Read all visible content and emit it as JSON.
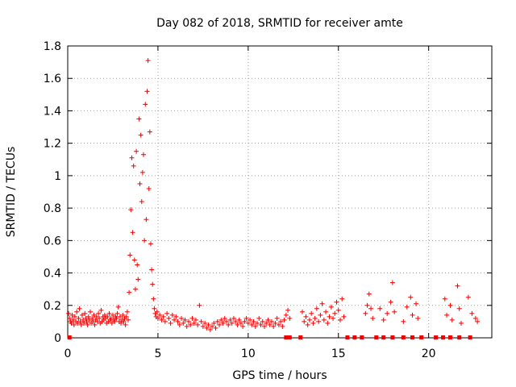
{
  "chart_data": {
    "type": "scatter",
    "title": "Day 082 of 2018, SRMTID for receiver amte",
    "xlabel": "GPS time / hours",
    "ylabel": "SRMTID / TECUs",
    "xlim": [
      0,
      23.5
    ],
    "ylim": [
      0,
      1.8
    ],
    "xticks": [
      0,
      5,
      10,
      15,
      20
    ],
    "yticks": [
      0,
      0.2,
      0.4,
      0.6,
      0.8,
      1,
      1.2,
      1.4,
      1.6,
      1.8
    ],
    "ytick_labels": [
      "0",
      "0.2",
      "0.4",
      "0.6",
      "0.8",
      "1",
      "1.2",
      "1.4",
      "1.6",
      "1.8"
    ],
    "grid": true,
    "marker": "+",
    "color": "#ee0000",
    "series": [
      {
        "name": "SRMTID",
        "points": [
          [
            0.05,
            0.15
          ],
          [
            0.1,
            0.12
          ],
          [
            0.15,
            0.1
          ],
          [
            0.2,
            0.09
          ],
          [
            0.25,
            0.14
          ],
          [
            0.3,
            0.11
          ],
          [
            0.35,
            0.08
          ],
          [
            0.4,
            0.13
          ],
          [
            0.45,
            0.1
          ],
          [
            0.5,
            0.16
          ],
          [
            0.55,
            0.09
          ],
          [
            0.6,
            0.12
          ],
          [
            0.65,
            0.18
          ],
          [
            0.7,
            0.1
          ],
          [
            0.75,
            0.08
          ],
          [
            0.8,
            0.14
          ],
          [
            0.85,
            0.11
          ],
          [
            0.9,
            0.09
          ],
          [
            0.95,
            0.15
          ],
          [
            1.0,
            0.12
          ],
          [
            1.05,
            0.1
          ],
          [
            1.1,
            0.08
          ],
          [
            1.15,
            0.13
          ],
          [
            1.2,
            0.11
          ],
          [
            1.25,
            0.16
          ],
          [
            1.3,
            0.09
          ],
          [
            1.35,
            0.12
          ],
          [
            1.4,
            0.1
          ],
          [
            1.45,
            0.14
          ],
          [
            1.5,
            0.08
          ],
          [
            1.55,
            0.11
          ],
          [
            1.6,
            0.13
          ],
          [
            1.65,
            0.1
          ],
          [
            1.7,
            0.15
          ],
          [
            1.75,
            0.12
          ],
          [
            1.8,
            0.09
          ],
          [
            1.85,
            0.17
          ],
          [
            1.9,
            0.1
          ],
          [
            1.95,
            0.13
          ],
          [
            2.0,
            0.11
          ],
          [
            2.05,
            0.14
          ],
          [
            2.1,
            0.12
          ],
          [
            2.15,
            0.09
          ],
          [
            2.2,
            0.13
          ],
          [
            2.25,
            0.1
          ],
          [
            2.3,
            0.15
          ],
          [
            2.35,
            0.11
          ],
          [
            2.4,
            0.12
          ],
          [
            2.45,
            0.09
          ],
          [
            2.5,
            0.14
          ],
          [
            2.55,
            0.11
          ],
          [
            2.6,
            0.1
          ],
          [
            2.65,
            0.13
          ],
          [
            2.7,
            0.12
          ],
          [
            2.75,
            0.15
          ],
          [
            2.8,
            0.19
          ],
          [
            2.85,
            0.1
          ],
          [
            2.9,
            0.13
          ],
          [
            2.95,
            0.09
          ],
          [
            3.0,
            0.11
          ],
          [
            3.05,
            0.14
          ],
          [
            3.1,
            0.1
          ],
          [
            3.15,
            0.12
          ],
          [
            3.2,
            0.08
          ],
          [
            3.25,
            0.13
          ],
          [
            3.3,
            0.16
          ],
          [
            3.35,
            0.11
          ],
          [
            3.4,
            0.28
          ],
          [
            3.45,
            0.51
          ],
          [
            3.5,
            0.79
          ],
          [
            3.55,
            1.11
          ],
          [
            3.6,
            0.65
          ],
          [
            3.65,
            1.06
          ],
          [
            3.7,
            0.48
          ],
          [
            3.75,
            0.3
          ],
          [
            3.8,
            1.15
          ],
          [
            3.85,
            0.45
          ],
          [
            3.9,
            0.36
          ],
          [
            3.95,
            1.35
          ],
          [
            4.0,
            0.95
          ],
          [
            4.05,
            1.25
          ],
          [
            4.1,
            0.84
          ],
          [
            4.15,
            1.02
          ],
          [
            4.2,
            1.13
          ],
          [
            4.25,
            0.6
          ],
          [
            4.3,
            1.44
          ],
          [
            4.35,
            0.73
          ],
          [
            4.4,
            1.52
          ],
          [
            4.45,
            1.71
          ],
          [
            4.5,
            0.92
          ],
          [
            4.55,
            1.27
          ],
          [
            4.6,
            0.58
          ],
          [
            4.65,
            0.42
          ],
          [
            4.7,
            0.33
          ],
          [
            4.75,
            0.24
          ],
          [
            4.8,
            0.18
          ],
          [
            4.85,
            0.15
          ],
          [
            4.9,
            0.13
          ],
          [
            4.95,
            0.16
          ],
          [
            5.0,
            0.12
          ],
          [
            5.1,
            0.14
          ],
          [
            5.2,
            0.11
          ],
          [
            5.3,
            0.13
          ],
          [
            5.4,
            0.1
          ],
          [
            5.5,
            0.15
          ],
          [
            5.6,
            0.12
          ],
          [
            5.7,
            0.09
          ],
          [
            5.8,
            0.14
          ],
          [
            5.9,
            0.11
          ],
          [
            6.0,
            0.13
          ],
          [
            6.1,
            0.1
          ],
          [
            6.2,
            0.08
          ],
          [
            6.3,
            0.12
          ],
          [
            6.4,
            0.09
          ],
          [
            6.5,
            0.11
          ],
          [
            6.6,
            0.07
          ],
          [
            6.7,
            0.1
          ],
          [
            6.8,
            0.08
          ],
          [
            6.9,
            0.12
          ],
          [
            7.0,
            0.09
          ],
          [
            7.1,
            0.11
          ],
          [
            7.2,
            0.08
          ],
          [
            7.3,
            0.2
          ],
          [
            7.4,
            0.1
          ],
          [
            7.5,
            0.07
          ],
          [
            7.6,
            0.09
          ],
          [
            7.7,
            0.06
          ],
          [
            7.8,
            0.08
          ],
          [
            7.9,
            0.05
          ],
          [
            8.0,
            0.07
          ],
          [
            8.1,
            0.09
          ],
          [
            8.2,
            0.06
          ],
          [
            8.3,
            0.1
          ],
          [
            8.4,
            0.08
          ],
          [
            8.5,
            0.11
          ],
          [
            8.6,
            0.09
          ],
          [
            8.7,
            0.12
          ],
          [
            8.8,
            0.1
          ],
          [
            8.9,
            0.08
          ],
          [
            9.0,
            0.11
          ],
          [
            9.1,
            0.09
          ],
          [
            9.2,
            0.12
          ],
          [
            9.3,
            0.1
          ],
          [
            9.4,
            0.08
          ],
          [
            9.5,
            0.11
          ],
          [
            9.6,
            0.09
          ],
          [
            9.7,
            0.07
          ],
          [
            9.8,
            0.1
          ],
          [
            9.9,
            0.12
          ],
          [
            10.0,
            0.09
          ],
          [
            10.1,
            0.11
          ],
          [
            10.2,
            0.08
          ],
          [
            10.3,
            0.1
          ],
          [
            10.4,
            0.07
          ],
          [
            10.5,
            0.09
          ],
          [
            10.6,
            0.12
          ],
          [
            10.7,
            0.08
          ],
          [
            10.8,
            0.1
          ],
          [
            10.9,
            0.07
          ],
          [
            11.0,
            0.09
          ],
          [
            11.1,
            0.11
          ],
          [
            11.2,
            0.08
          ],
          [
            11.3,
            0.1
          ],
          [
            11.4,
            0.07
          ],
          [
            11.5,
            0.09
          ],
          [
            11.6,
            0.12
          ],
          [
            11.7,
            0.08
          ],
          [
            11.8,
            0.1
          ],
          [
            11.9,
            0.07
          ],
          [
            12.0,
            0.11
          ],
          [
            12.1,
            0.14
          ],
          [
            12.2,
            0.17
          ],
          [
            12.3,
            0.12
          ],
          [
            13.0,
            0.16
          ],
          [
            13.1,
            0.1
          ],
          [
            13.2,
            0.13
          ],
          [
            13.3,
            0.08
          ],
          [
            13.4,
            0.11
          ],
          [
            13.5,
            0.15
          ],
          [
            13.6,
            0.09
          ],
          [
            13.7,
            0.12
          ],
          [
            13.8,
            0.18
          ],
          [
            13.9,
            0.1
          ],
          [
            14.0,
            0.14
          ],
          [
            14.1,
            0.21
          ],
          [
            14.2,
            0.11
          ],
          [
            14.3,
            0.16
          ],
          [
            14.4,
            0.09
          ],
          [
            14.5,
            0.13
          ],
          [
            14.6,
            0.19
          ],
          [
            14.7,
            0.12
          ],
          [
            14.8,
            0.15
          ],
          [
            14.9,
            0.22
          ],
          [
            15.0,
            0.17
          ],
          [
            15.1,
            0.11
          ],
          [
            15.2,
            0.24
          ],
          [
            15.3,
            0.13
          ],
          [
            16.5,
            0.15
          ],
          [
            16.6,
            0.2
          ],
          [
            16.7,
            0.27
          ],
          [
            16.8,
            0.18
          ],
          [
            16.9,
            0.12
          ],
          [
            17.3,
            0.18
          ],
          [
            17.5,
            0.11
          ],
          [
            17.7,
            0.15
          ],
          [
            17.9,
            0.22
          ],
          [
            18.0,
            0.34
          ],
          [
            18.1,
            0.16
          ],
          [
            18.6,
            0.1
          ],
          [
            18.8,
            0.19
          ],
          [
            19.0,
            0.25
          ],
          [
            19.1,
            0.14
          ],
          [
            19.3,
            0.21
          ],
          [
            19.4,
            0.12
          ],
          [
            20.9,
            0.24
          ],
          [
            21.0,
            0.14
          ],
          [
            21.2,
            0.2
          ],
          [
            21.3,
            0.11
          ],
          [
            21.6,
            0.32
          ],
          [
            21.7,
            0.18
          ],
          [
            21.8,
            0.09
          ],
          [
            22.2,
            0.25
          ],
          [
            22.4,
            0.15
          ],
          [
            22.6,
            0.12
          ],
          [
            22.7,
            0.1
          ]
        ]
      },
      {
        "name": "zero-level",
        "x": [
          0.1,
          12.1,
          12.3,
          12.9,
          15.5,
          15.9,
          16.3,
          17.1,
          17.5,
          18.0,
          18.6,
          19.1,
          19.6,
          20.4,
          20.8,
          21.2,
          21.7,
          22.3
        ]
      }
    ]
  }
}
